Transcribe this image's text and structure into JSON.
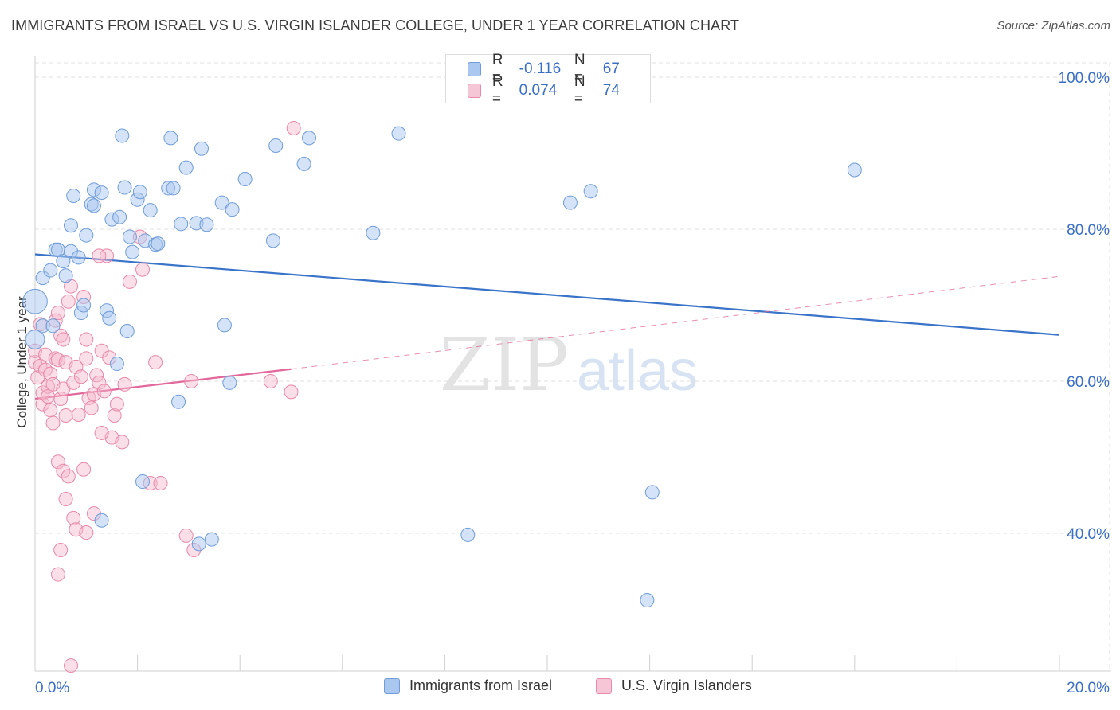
{
  "header": {
    "title": "IMMIGRANTS FROM ISRAEL VS U.S. VIRGIN ISLANDER COLLEGE, UNDER 1 YEAR CORRELATION CHART",
    "source": "Source: ZipAtlas.com"
  },
  "watermark": {
    "part1": "ZIP",
    "part2": "atlas"
  },
  "colors": {
    "blue_fill": "#a9c7ef",
    "blue_stroke": "#6f9cd8",
    "blue_line": "#3a74c9",
    "pink_fill": "#f5b8cb",
    "pink_stroke": "#e988a8",
    "pink_line": "#e2679a",
    "tick_label": "#3a6fc4",
    "grid": "#e2e2e2"
  },
  "legend_top": {
    "rows": [
      {
        "r_label": "R =",
        "r_value": "-0.116",
        "n_label": "N =",
        "n_value": "67"
      },
      {
        "r_label": "R =",
        "r_value": "0.074",
        "n_label": "N =",
        "n_value": "74"
      }
    ]
  },
  "legend_bottom": {
    "series1": "Immigrants from Israel",
    "series2": "U.S. Virgin Islanders"
  },
  "chart_data": {
    "type": "scatter",
    "title": "IMMIGRANTS FROM ISRAEL VS U.S. VIRGIN ISLANDER COLLEGE, UNDER 1 YEAR CORRELATION CHART",
    "xlabel": "",
    "ylabel": "College, Under 1 year",
    "xlim": [
      0,
      20
    ],
    "ylim": [
      22,
      103
    ],
    "x_tick_labels": [
      "0.0%",
      "20.0%"
    ],
    "y_ticks": [
      40,
      60,
      80,
      100
    ],
    "y_tick_labels": [
      "40.0%",
      "60.0%",
      "80.0%",
      "100.0%"
    ],
    "grid": true,
    "series": [
      {
        "name": "Immigrants from Israel",
        "r": -0.116,
        "n": 67,
        "trend": {
          "x": [
            0,
            20
          ],
          "y": [
            76.7,
            66.1
          ],
          "style": "solid"
        },
        "points": [
          [
            0.0,
            70.5,
            1.8
          ],
          [
            0.0,
            65.5,
            1.4
          ],
          [
            0.15,
            67.3,
            1.0
          ],
          [
            0.15,
            73.6,
            1.0
          ],
          [
            0.3,
            74.6,
            1.0
          ],
          [
            0.35,
            67.3,
            1.0
          ],
          [
            0.4,
            77.3,
            1.0
          ],
          [
            0.45,
            77.3,
            1.0
          ],
          [
            0.55,
            75.8,
            1.0
          ],
          [
            0.6,
            73.9,
            1.0
          ],
          [
            0.7,
            77.1,
            1.0
          ],
          [
            0.7,
            80.5,
            1.0
          ],
          [
            0.75,
            84.4,
            1.0
          ],
          [
            0.85,
            76.3,
            1.0
          ],
          [
            0.9,
            69.0,
            1.0
          ],
          [
            0.95,
            70.0,
            1.0
          ],
          [
            1.0,
            79.2,
            1.0
          ],
          [
            1.1,
            83.3,
            1.0
          ],
          [
            1.15,
            85.2,
            1.0
          ],
          [
            1.15,
            83.1,
            1.0
          ],
          [
            1.3,
            84.8,
            1.0
          ],
          [
            1.4,
            69.3,
            1.0
          ],
          [
            1.45,
            68.3,
            1.0
          ],
          [
            1.5,
            81.3,
            1.0
          ],
          [
            1.6,
            62.3,
            1.0
          ],
          [
            1.65,
            81.6,
            1.0
          ],
          [
            1.7,
            92.3,
            1.0
          ],
          [
            1.75,
            85.5,
            1.0
          ],
          [
            1.8,
            66.6,
            1.0
          ],
          [
            1.85,
            79.0,
            1.0
          ],
          [
            1.9,
            77.0,
            1.0
          ],
          [
            2.0,
            83.9,
            1.0
          ],
          [
            2.05,
            84.9,
            1.0
          ],
          [
            2.15,
            78.5,
            1.0
          ],
          [
            2.25,
            82.5,
            1.0
          ],
          [
            2.35,
            78.0,
            1.0
          ],
          [
            2.4,
            78.1,
            1.0
          ],
          [
            2.6,
            85.4,
            1.0
          ],
          [
            2.65,
            92.0,
            1.0
          ],
          [
            2.7,
            85.4,
            1.0
          ],
          [
            2.8,
            57.3,
            1.0
          ],
          [
            2.85,
            80.7,
            1.0
          ],
          [
            2.95,
            88.1,
            1.0
          ],
          [
            3.15,
            80.8,
            1.0
          ],
          [
            3.25,
            90.6,
            1.0
          ],
          [
            3.35,
            80.6,
            1.0
          ],
          [
            3.65,
            83.5,
            1.0
          ],
          [
            3.7,
            67.4,
            1.0
          ],
          [
            3.8,
            59.8,
            1.0
          ],
          [
            3.85,
            82.6,
            1.0
          ],
          [
            4.1,
            86.6,
            1.0
          ],
          [
            4.65,
            78.5,
            1.0
          ],
          [
            4.7,
            91.0,
            1.0
          ],
          [
            5.25,
            88.6,
            1.0
          ],
          [
            5.35,
            92.0,
            1.0
          ],
          [
            6.6,
            79.5,
            1.0
          ],
          [
            7.1,
            92.6,
            1.0
          ],
          [
            10.45,
            83.5,
            1.0
          ],
          [
            10.85,
            85.0,
            1.0
          ],
          [
            16.0,
            87.8,
            1.0
          ],
          [
            2.1,
            46.8,
            1.0
          ],
          [
            1.3,
            41.7,
            1.0
          ],
          [
            3.2,
            38.6,
            1.0
          ],
          [
            3.45,
            39.2,
            1.0
          ],
          [
            8.45,
            39.8,
            1.0
          ],
          [
            12.05,
            45.4,
            1.0
          ],
          [
            11.95,
            31.2,
            1.0
          ]
        ]
      },
      {
        "name": "U.S. Virgin Islanders",
        "r": 0.074,
        "n": 74,
        "trend": {
          "x": [
            0,
            5.0
          ],
          "y": [
            57.7,
            61.6
          ],
          "style": "solid",
          "extension": {
            "x": [
              5.0,
              20
            ],
            "y": [
              61.6,
              73.8
            ],
            "style": "dashed"
          }
        },
        "points": [
          [
            0.0,
            62.5,
            1.0
          ],
          [
            0.0,
            64.0,
            1.0
          ],
          [
            0.05,
            60.5,
            1.0
          ],
          [
            0.1,
            67.5,
            1.0
          ],
          [
            0.1,
            62.0,
            1.0
          ],
          [
            0.15,
            57.0,
            1.0
          ],
          [
            0.15,
            58.5,
            1.0
          ],
          [
            0.2,
            61.5,
            1.0
          ],
          [
            0.2,
            63.5,
            1.0
          ],
          [
            0.25,
            59.3,
            1.0
          ],
          [
            0.25,
            58.0,
            1.0
          ],
          [
            0.3,
            56.2,
            1.0
          ],
          [
            0.3,
            61.0,
            1.0
          ],
          [
            0.35,
            54.5,
            1.0
          ],
          [
            0.35,
            59.6,
            1.0
          ],
          [
            0.4,
            63.0,
            1.0
          ],
          [
            0.4,
            68.0,
            1.0
          ],
          [
            0.45,
            69.0,
            1.0
          ],
          [
            0.45,
            62.8,
            1.0
          ],
          [
            0.5,
            57.7,
            1.0
          ],
          [
            0.5,
            66.0,
            1.0
          ],
          [
            0.55,
            59.0,
            1.0
          ],
          [
            0.55,
            65.5,
            1.0
          ],
          [
            0.6,
            62.5,
            1.0
          ],
          [
            0.6,
            55.5,
            1.0
          ],
          [
            0.65,
            70.5,
            1.0
          ],
          [
            0.7,
            72.5,
            1.0
          ],
          [
            0.75,
            59.8,
            1.0
          ],
          [
            0.8,
            61.9,
            1.0
          ],
          [
            0.85,
            55.6,
            1.0
          ],
          [
            0.9,
            60.6,
            1.0
          ],
          [
            0.95,
            71.1,
            1.0
          ],
          [
            1.0,
            65.5,
            1.0
          ],
          [
            1.0,
            63.0,
            1.0
          ],
          [
            1.05,
            57.8,
            1.0
          ],
          [
            1.1,
            56.5,
            1.0
          ],
          [
            1.15,
            58.3,
            1.0
          ],
          [
            1.2,
            60.8,
            1.0
          ],
          [
            1.25,
            59.8,
            1.0
          ],
          [
            1.3,
            64.0,
            1.0
          ],
          [
            1.35,
            58.7,
            1.0
          ],
          [
            1.4,
            76.5,
            1.0
          ],
          [
            1.45,
            63.1,
            1.0
          ],
          [
            1.5,
            52.6,
            1.0
          ],
          [
            1.55,
            55.5,
            1.0
          ],
          [
            1.6,
            57.0,
            1.0
          ],
          [
            1.7,
            52.0,
            1.0
          ],
          [
            1.75,
            59.6,
            1.0
          ],
          [
            1.85,
            73.1,
            1.0
          ],
          [
            2.05,
            79.0,
            1.0
          ],
          [
            2.1,
            74.7,
            1.0
          ],
          [
            2.25,
            46.6,
            1.0
          ],
          [
            2.35,
            62.5,
            1.0
          ],
          [
            2.45,
            46.6,
            1.0
          ],
          [
            0.45,
            49.4,
            1.0
          ],
          [
            0.55,
            48.2,
            1.0
          ],
          [
            0.6,
            44.5,
            1.0
          ],
          [
            0.65,
            47.5,
            1.0
          ],
          [
            0.75,
            42.0,
            1.0
          ],
          [
            0.8,
            40.5,
            1.0
          ],
          [
            0.95,
            48.4,
            1.0
          ],
          [
            1.0,
            40.1,
            1.0
          ],
          [
            1.15,
            42.6,
            1.0
          ],
          [
            1.3,
            53.2,
            1.0
          ],
          [
            0.5,
            37.8,
            1.0
          ],
          [
            0.45,
            34.6,
            1.0
          ],
          [
            0.7,
            22.6,
            1.0
          ],
          [
            2.95,
            39.7,
            1.0
          ],
          [
            3.1,
            37.8,
            1.0
          ],
          [
            3.05,
            60.0,
            1.0
          ],
          [
            4.6,
            60.0,
            1.0
          ],
          [
            5.0,
            58.6,
            1.0
          ],
          [
            5.05,
            93.3,
            1.0
          ],
          [
            1.25,
            76.5,
            1.0
          ]
        ]
      }
    ]
  }
}
